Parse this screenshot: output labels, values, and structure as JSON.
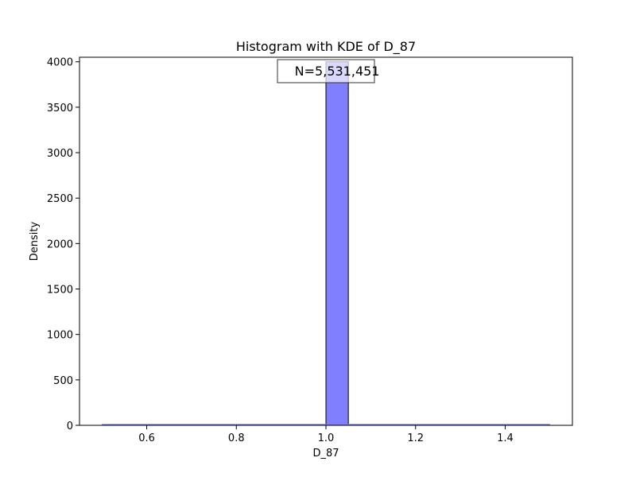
{
  "chart_data": {
    "type": "bar",
    "title": "Histogram with KDE of D_87",
    "xlabel": "D_87",
    "ylabel": "Density",
    "xlim": [
      0.45,
      1.55
    ],
    "ylim": [
      0,
      4050
    ],
    "xticks": [
      0.6,
      0.8,
      1.0,
      1.2,
      1.4
    ],
    "yticks": [
      0,
      500,
      1000,
      1500,
      2000,
      2500,
      3000,
      3500,
      4000
    ],
    "bins": [
      {
        "x0": 1.0,
        "x1": 1.05,
        "density": 4000
      }
    ],
    "kde_baseline": {
      "x": [
        0.5,
        1.5
      ],
      "y": [
        0,
        0
      ]
    },
    "bar_color": "#8080ff",
    "annotation": "N=5,531,451",
    "grid": false
  }
}
